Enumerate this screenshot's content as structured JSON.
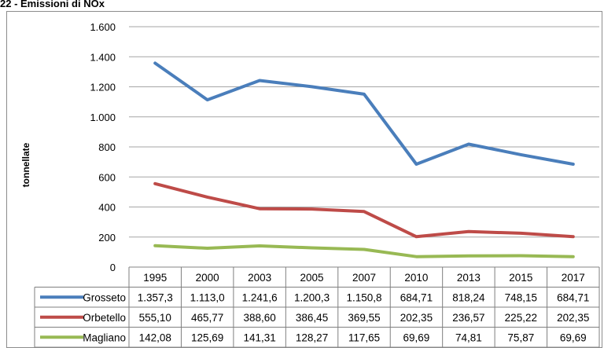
{
  "page": {
    "title": "22 - Emissioni di NOx"
  },
  "chart_data": {
    "type": "line",
    "title": "",
    "xlabel": "",
    "ylabel": "tonnellate",
    "categories": [
      "1995",
      "2000",
      "2003",
      "2005",
      "2007",
      "2010",
      "2013",
      "2015",
      "2017"
    ],
    "ylim": [
      0,
      1600
    ],
    "yticks": [
      0,
      200,
      400,
      600,
      800,
      1000,
      1200,
      1400,
      1600
    ],
    "ytick_labels": [
      "0",
      "200",
      "400",
      "600",
      "800",
      "1.000",
      "1.200",
      "1.400",
      "1.600"
    ],
    "grid": true,
    "legend": "data-table",
    "series": [
      {
        "name": "Grosseto",
        "color": "#4a7ebb",
        "values": [
          1357.3,
          1113.0,
          1241.6,
          1200.3,
          1150.8,
          684.71,
          818.24,
          748.15,
          684.71
        ],
        "labels": [
          "1.357,3",
          "1.113,0",
          "1.241,6",
          "1.200,3",
          "1.150,8",
          "684,71",
          "818,24",
          "748,15",
          "684,71"
        ]
      },
      {
        "name": "Orbetello",
        "color": "#be4b48",
        "values": [
          555.1,
          465.77,
          388.6,
          386.45,
          369.55,
          202.35,
          236.57,
          225.22,
          202.35
        ],
        "labels": [
          "555,10",
          "465,77",
          "388,60",
          "386,45",
          "369,55",
          "202,35",
          "236,57",
          "225,22",
          "202,35"
        ]
      },
      {
        "name": "Magliano",
        "color": "#98b954",
        "values": [
          142.08,
          125.69,
          141.31,
          128.27,
          117.65,
          69.69,
          74.81,
          75.87,
          69.69
        ],
        "labels": [
          "142,08",
          "125,69",
          "141,31",
          "128,27",
          "117,65",
          "69,69",
          "74,81",
          "75,87",
          "69,69"
        ]
      }
    ]
  }
}
